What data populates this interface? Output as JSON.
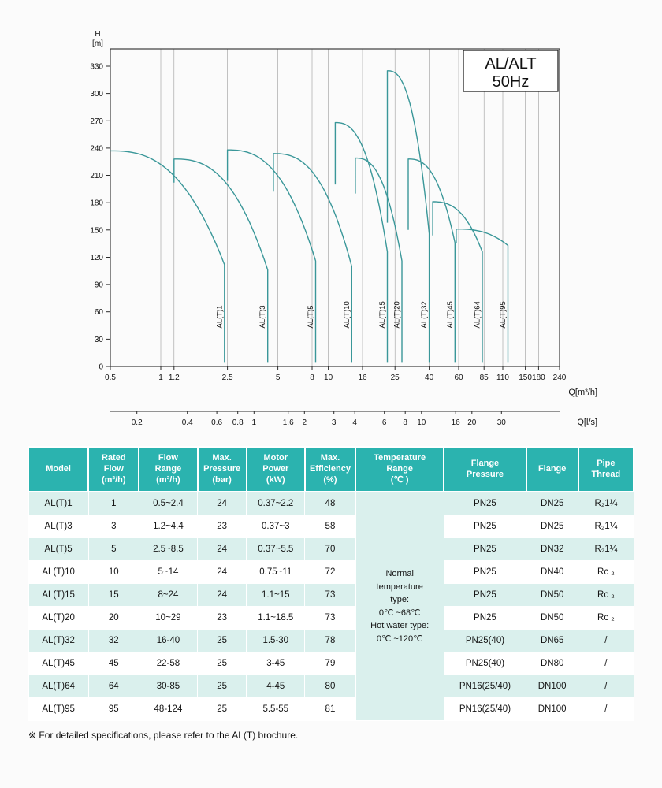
{
  "chart_data": {
    "type": "line",
    "title_lines": [
      "AL/ALT",
      "50Hz"
    ],
    "ylabel_lines": [
      "H",
      "[m]"
    ],
    "xlabel_primary": "Q[m³/h]",
    "xlabel_secondary": "Q[l/s]",
    "ylim": [
      0,
      330
    ],
    "ytick_step": 30,
    "x_scale": "log",
    "xlog_range": [
      0.5,
      240
    ],
    "xticks_m3h": [
      0.5,
      1,
      1.2,
      2.5,
      5,
      8,
      10,
      16,
      25,
      40,
      60,
      85,
      110,
      150,
      180,
      240
    ],
    "xticks_ls": [
      0.2,
      0.4,
      0.6,
      0.8,
      1,
      1.6,
      2,
      3,
      4,
      6,
      8,
      10,
      16,
      20,
      30
    ],
    "grid": "vertical-only",
    "legend_position": "none",
    "series": [
      {
        "name": "AL(T)1",
        "qmin": 0.5,
        "qmax": 2.4,
        "htop": 237,
        "hknee": 112,
        "ledge": 237
      },
      {
        "name": "AL(T)3",
        "qmin": 1.2,
        "qmax": 4.35,
        "htop": 228,
        "hknee": 106,
        "ledge": 202
      },
      {
        "name": "AL(T)5",
        "qmin": 2.5,
        "qmax": 8.4,
        "htop": 238,
        "hknee": 116,
        "ledge": 204
      },
      {
        "name": "AL(T)10",
        "qmin": 4.7,
        "qmax": 13.8,
        "htop": 234,
        "hknee": 110,
        "ledge": 192
      },
      {
        "name": "AL(T)15",
        "qmin": 11,
        "qmax": 22.5,
        "htop": 268,
        "hknee": 126,
        "ledge": 200
      },
      {
        "name": "AL(T)20",
        "qmin": 14.5,
        "qmax": 27.5,
        "htop": 229,
        "hknee": 116,
        "ledge": 190
      },
      {
        "name": "AL(T)32",
        "qmin": 22.5,
        "qmax": 40,
        "htop": 325,
        "hknee": 146,
        "ledge": 158
      },
      {
        "name": "AL(T)45",
        "qmin": 30,
        "qmax": 57,
        "htop": 228,
        "hknee": 136,
        "ledge": 150
      },
      {
        "name": "AL(T)64",
        "qmin": 42,
        "qmax": 83,
        "htop": 181,
        "hknee": 126,
        "ledge": 144
      },
      {
        "name": "AL(T)95",
        "qmin": 58,
        "qmax": 118,
        "htop": 151,
        "hknee": 133,
        "ledge": 136
      }
    ]
  },
  "table": {
    "headers": [
      "Model",
      "Rated\nFlow\n(m³/h)",
      "Flow\nRange\n(m³/h)",
      "Max.\nPressure\n(bar)",
      "Motor\nPower\n(kW)",
      "Max.\nEfficiency\n(%)",
      "Temperature\nRange\n(℃ )",
      "Flange\nPressure",
      "Flange",
      "Pipe\nThread"
    ],
    "temperature_note": "Normal\ntemperature\ntype:\n0℃ ~68℃\nHot water type:\n0℃ ~120℃",
    "rows": [
      {
        "model": "AL(T)1",
        "rated_flow": "1",
        "flow_range": "0.5~2.4",
        "max_pressure": "24",
        "motor_power": "0.37~2.2",
        "max_efficiency": "48",
        "flange_pressure": "PN25",
        "flange": "DN25",
        "pipe_thread": "R₂1¼"
      },
      {
        "model": "AL(T)3",
        "rated_flow": "3",
        "flow_range": "1.2~4.4",
        "max_pressure": "23",
        "motor_power": "0.37~3",
        "max_efficiency": "58",
        "flange_pressure": "PN25",
        "flange": "DN25",
        "pipe_thread": "R₂1¼"
      },
      {
        "model": "AL(T)5",
        "rated_flow": "5",
        "flow_range": "2.5~8.5",
        "max_pressure": "24",
        "motor_power": "0.37~5.5",
        "max_efficiency": "70",
        "flange_pressure": "PN25",
        "flange": "DN32",
        "pipe_thread": "R₂1¼"
      },
      {
        "model": "AL(T)10",
        "rated_flow": "10",
        "flow_range": "5~14",
        "max_pressure": "24",
        "motor_power": "0.75~11",
        "max_efficiency": "72",
        "flange_pressure": "PN25",
        "flange": "DN40",
        "pipe_thread": "Rc ₂"
      },
      {
        "model": "AL(T)15",
        "rated_flow": "15",
        "flow_range": "8~24",
        "max_pressure": "24",
        "motor_power": "1.1~15",
        "max_efficiency": "73",
        "flange_pressure": "PN25",
        "flange": "DN50",
        "pipe_thread": "Rc ₂"
      },
      {
        "model": "AL(T)20",
        "rated_flow": "20",
        "flow_range": "10~29",
        "max_pressure": "23",
        "motor_power": "1.1~18.5",
        "max_efficiency": "73",
        "flange_pressure": "PN25",
        "flange": "DN50",
        "pipe_thread": "Rc ₂"
      },
      {
        "model": "AL(T)32",
        "rated_flow": "32",
        "flow_range": "16-40",
        "max_pressure": "25",
        "motor_power": "1.5-30",
        "max_efficiency": "78",
        "flange_pressure": "PN25(40)",
        "flange": "DN65",
        "pipe_thread": "/"
      },
      {
        "model": "AL(T)45",
        "rated_flow": "45",
        "flow_range": "22-58",
        "max_pressure": "25",
        "motor_power": "3-45",
        "max_efficiency": "79",
        "flange_pressure": "PN25(40)",
        "flange": "DN80",
        "pipe_thread": "/"
      },
      {
        "model": "AL(T)64",
        "rated_flow": "64",
        "flow_range": "30-85",
        "max_pressure": "25",
        "motor_power": "4-45",
        "max_efficiency": "80",
        "flange_pressure": "PN16(25/40)",
        "flange": "DN100",
        "pipe_thread": "/"
      },
      {
        "model": "AL(T)95",
        "rated_flow": "95",
        "flow_range": "48-124",
        "max_pressure": "25",
        "motor_power": "5.5-55",
        "max_efficiency": "81",
        "flange_pressure": "PN16(25/40)",
        "flange": "DN100",
        "pipe_thread": "/"
      }
    ]
  },
  "footnote": "※ For detailed specifications, please refer to the AL(T) brochure.",
  "colors": {
    "accent": "#2bb3af",
    "row_tint": "#daf0ed",
    "temp_cell": "#cdeae7",
    "curve": "#3a9799",
    "axis": "#2b2b2b",
    "gridline": "#9b9b9b"
  }
}
